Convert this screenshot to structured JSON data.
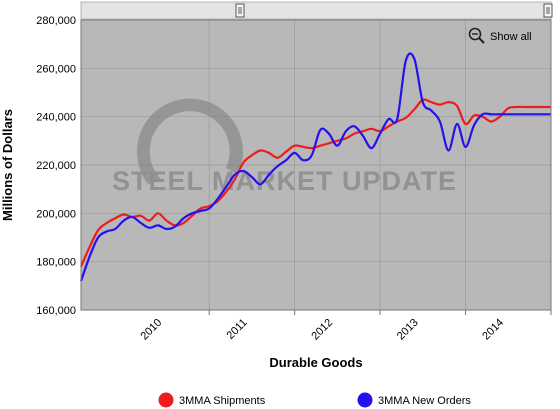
{
  "chart_data": {
    "type": "line",
    "xlabel": "Durable Goods",
    "ylabel": "Millions of Dollars",
    "ylim": [
      160000,
      280000
    ],
    "yticks": [
      "160,000",
      "180,000",
      "200,000",
      "220,000",
      "240,000",
      "260,000",
      "280,000"
    ],
    "ytick_values": [
      160000,
      180000,
      200000,
      220000,
      240000,
      260000,
      280000
    ],
    "xlim": [
      2009.5,
      2015.0
    ],
    "xticks": [
      "2010",
      "2011",
      "2012",
      "2013",
      "2014"
    ],
    "xtick_values": [
      2010.0,
      2011.0,
      2012.0,
      2013.0,
      2014.0
    ],
    "grid": true,
    "legend_placement": "bottom",
    "show_all_label": "Show all",
    "watermark": "STEEL MARKET UPDATE",
    "series": [
      {
        "name": "3MMA Shipments",
        "color": "#ee1c1c",
        "x": [
          2009.5,
          2009.6,
          2009.7,
          2009.8,
          2009.9,
          2010.0,
          2010.1,
          2010.2,
          2010.3,
          2010.4,
          2010.5,
          2010.6,
          2010.7,
          2010.8,
          2010.9,
          2011.0,
          2011.1,
          2011.2,
          2011.3,
          2011.4,
          2011.5,
          2011.6,
          2011.7,
          2011.8,
          2011.9,
          2012.0,
          2012.1,
          2012.2,
          2012.3,
          2012.4,
          2012.5,
          2012.6,
          2012.7,
          2012.8,
          2012.9,
          2013.0,
          2013.1,
          2013.2,
          2013.3,
          2013.4,
          2013.5,
          2013.6,
          2013.7,
          2013.8,
          2013.9,
          2014.0,
          2014.1,
          2014.2,
          2014.3,
          2014.4,
          2014.5,
          2014.6,
          2014.7,
          2014.8,
          2014.9,
          2015.0
        ],
        "values": [
          178000,
          186000,
          193000,
          196000,
          198000,
          199500,
          198500,
          199000,
          197000,
          200000,
          197000,
          195000,
          196000,
          199000,
          202000,
          203000,
          205000,
          209000,
          214000,
          221000,
          224000,
          226000,
          225000,
          223000,
          225500,
          228000,
          227500,
          227000,
          228000,
          229000,
          230000,
          231000,
          233000,
          234000,
          235000,
          234000,
          236000,
          238000,
          239500,
          243000,
          247000,
          246000,
          245000,
          246000,
          244500,
          237000,
          240500,
          240000,
          238000,
          240000,
          243500,
          244000,
          244000,
          244000,
          244000,
          244000
        ]
      },
      {
        "name": "3MMA New Orders",
        "color": "#2411ee",
        "x": [
          2009.5,
          2009.6,
          2009.7,
          2009.8,
          2009.9,
          2010.0,
          2010.1,
          2010.2,
          2010.3,
          2010.4,
          2010.5,
          2010.6,
          2010.7,
          2010.8,
          2010.9,
          2011.0,
          2011.1,
          2011.2,
          2011.3,
          2011.4,
          2011.5,
          2011.6,
          2011.7,
          2011.8,
          2011.9,
          2012.0,
          2012.1,
          2012.2,
          2012.3,
          2012.4,
          2012.5,
          2012.6,
          2012.7,
          2012.8,
          2012.9,
          2013.0,
          2013.1,
          2013.2,
          2013.3,
          2013.4,
          2013.5,
          2013.6,
          2013.7,
          2013.8,
          2013.9,
          2014.0,
          2014.1,
          2014.2,
          2014.3,
          2014.4,
          2014.5,
          2014.6,
          2014.7,
          2014.8,
          2014.9,
          2015.0
        ],
        "values": [
          172000,
          182000,
          190000,
          192500,
          193500,
          197000,
          198500,
          196000,
          194000,
          195000,
          193500,
          194500,
          198000,
          200000,
          201000,
          202000,
          206000,
          211000,
          216000,
          217500,
          215000,
          212000,
          216000,
          219500,
          222000,
          225000,
          222000,
          224000,
          234500,
          233000,
          228000,
          234000,
          236000,
          232000,
          227000,
          233000,
          239000,
          239000,
          263000,
          264000,
          246000,
          242500,
          238000,
          226000,
          237000,
          227500,
          236500,
          241000,
          241000,
          241000,
          241000,
          241000,
          241000,
          241000,
          241000,
          241000
        ]
      }
    ]
  }
}
